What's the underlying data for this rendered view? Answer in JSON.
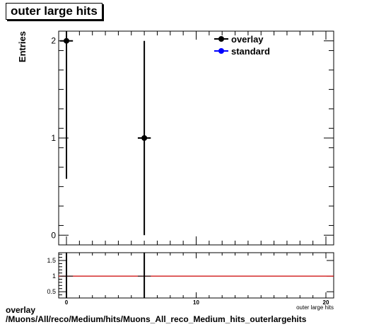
{
  "title": "outer large hits",
  "footer": {
    "line1": "overlay",
    "line2": "/Muons/All/reco/Medium/hits/Muons_All_reco_Medium_hits_outerlargehits"
  },
  "colors": {
    "overlay": "#000000",
    "standard": "#0000ff",
    "ratio_line": "#cc0000",
    "frame": "#000000"
  },
  "chart_data": [
    {
      "type": "scatter",
      "ylabel": "Entries",
      "xlim": [
        -0.6,
        20.6
      ],
      "ylim": [
        -0.1,
        2.1
      ],
      "yticks": [
        0,
        1,
        2
      ],
      "legend": {
        "position": "top-right",
        "entries": [
          "overlay",
          "standard"
        ]
      },
      "series": [
        {
          "name": "overlay",
          "points": [
            {
              "x": 0,
              "y": 2,
              "xerr": 0.5,
              "yerr_low": 1.42,
              "yerr_high": 1.42
            },
            {
              "x": 6,
              "y": 1,
              "xerr": 0.5,
              "yerr_low": 1.0,
              "yerr_high": 1.0
            }
          ]
        },
        {
          "name": "standard",
          "points": []
        }
      ]
    },
    {
      "type": "line",
      "xlabel": "outer large hits",
      "xlim": [
        -0.6,
        20.6
      ],
      "ylim": [
        0.3,
        1.75
      ],
      "xticks": [
        0,
        10,
        20
      ],
      "yticks": [
        0.5,
        1,
        1.5
      ],
      "reference_line": 1,
      "points": [
        {
          "x": 0,
          "y": 1,
          "xerr": 0.5
        },
        {
          "x": 6,
          "y": 1,
          "xerr": 0.5
        }
      ]
    }
  ]
}
